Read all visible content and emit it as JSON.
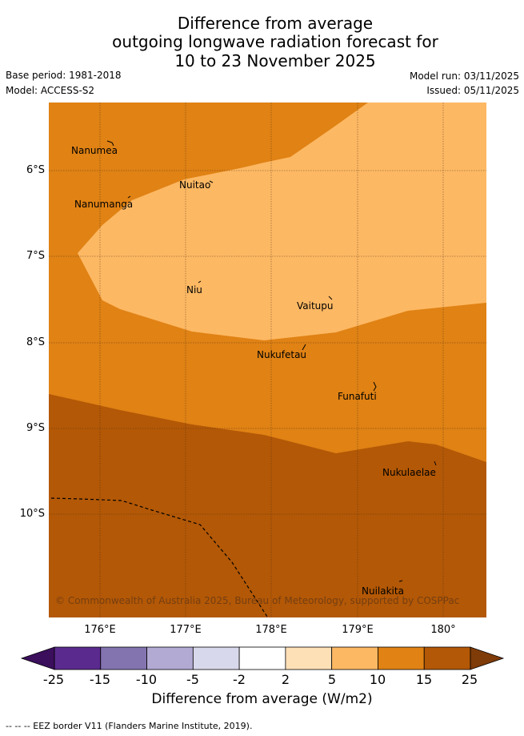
{
  "header": {
    "title_line1": "Difference from average",
    "title_line2": "outgoing longwave radiation forecast for",
    "title_line3": "10 to 23 November 2025",
    "base_period": "Base period: 1981-2018",
    "model": "Model: ACCESS-S2",
    "model_run": "Model run: 03/11/2025",
    "issued": "Issued: 05/11/2025"
  },
  "map": {
    "places": [
      {
        "name": "Nanumea"
      },
      {
        "name": "Nuitao"
      },
      {
        "name": "Nanumanga"
      },
      {
        "name": "Niu"
      },
      {
        "name": "Vaitupu"
      },
      {
        "name": "Nukufetau"
      },
      {
        "name": "Funafuti"
      },
      {
        "name": "Nukulaelae"
      },
      {
        "name": "Nuilakita"
      }
    ],
    "lat_labels": [
      "6°S",
      "7°S",
      "8°S",
      "9°S",
      "10°S"
    ],
    "lon_labels": [
      "176°E",
      "177°E",
      "178°E",
      "179°E",
      "180°"
    ],
    "copyright": "© Commonwealth of Australia 2025, Bureau of Meteorology, supported by COSPPac"
  },
  "colorbar": {
    "ticks": [
      "-25",
      "-15",
      "-10",
      "-5",
      "-2",
      "2",
      "5",
      "10",
      "15",
      "25"
    ],
    "colors": [
      "#5a2a8e",
      "#8374b0",
      "#b3aad4",
      "#d8d8ec",
      "#ffffff",
      "#fee0b6",
      "#fdb863",
      "#e08214",
      "#b35806"
    ],
    "low_extend_color": "#3b0f5c",
    "high_extend_color": "#7f3b08",
    "title": "Difference from average (W/m2)"
  },
  "footer": {
    "eez_note": "--  --  -- EEZ border V11 (Flanders Marine Institute, 2019)."
  }
}
